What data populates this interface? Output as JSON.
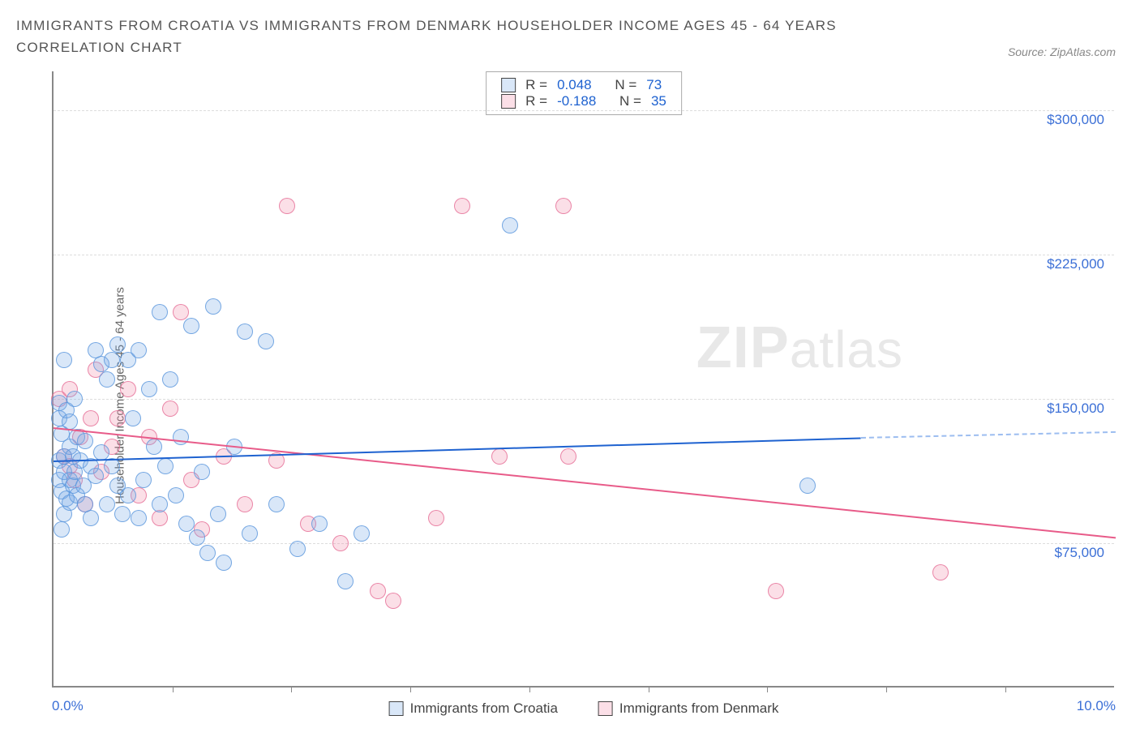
{
  "title": "IMMIGRANTS FROM CROATIA VS IMMIGRANTS FROM DENMARK HOUSEHOLDER INCOME AGES 45 - 64 YEARS CORRELATION CHART",
  "source": "Source: ZipAtlas.com",
  "watermark": {
    "part1": "ZIP",
    "part2": "atlas"
  },
  "chart": {
    "type": "scatter",
    "y_axis_label": "Householder Income Ages 45 - 64 years",
    "y_axis_label_fontsize": 15,
    "xlim": [
      0,
      10
    ],
    "ylim": [
      0,
      320000
    ],
    "x_min_label": "0.0%",
    "x_max_label": "10.0%",
    "x_tick_positions": [
      1.12,
      2.24,
      3.36,
      4.48,
      5.6,
      6.72,
      7.84,
      8.96
    ],
    "y_ticks": [
      {
        "value": 75000,
        "label": "$75,000"
      },
      {
        "value": 150000,
        "label": "$150,000"
      },
      {
        "value": 225000,
        "label": "$225,000"
      },
      {
        "value": 300000,
        "label": "$300,000"
      }
    ],
    "grid_color": "#dddddd",
    "background_color": "#ffffff",
    "axis_color": "#888888",
    "label_color": "#3b6fd6",
    "point_radius": 10,
    "legend": {
      "a": "Immigrants from Croatia",
      "b": "Immigrants from Denmark"
    },
    "stats": {
      "a": {
        "R": "0.048",
        "N": "73"
      },
      "b": {
        "R": "-0.188",
        "N": "35"
      },
      "r_label": "R =",
      "n_label": "N ="
    },
    "series_a": {
      "fill": "rgba(120,170,230,0.28)",
      "stroke": "rgba(90,150,220,0.8)",
      "line_color": "#1e62d0",
      "trend": {
        "x1": 0,
        "y1": 118000,
        "x2": 7.6,
        "y2": 130000,
        "x2_ext": 10,
        "y2_ext": 133000
      },
      "points": [
        [
          0.05,
          140000
        ],
        [
          0.05,
          148000
        ],
        [
          0.05,
          118000
        ],
        [
          0.05,
          108000
        ],
        [
          0.08,
          132000
        ],
        [
          0.08,
          102000
        ],
        [
          0.1,
          170000
        ],
        [
          0.1,
          120000
        ],
        [
          0.1,
          112000
        ],
        [
          0.1,
          90000
        ],
        [
          0.12,
          144000
        ],
        [
          0.12,
          98000
        ],
        [
          0.15,
          138000
        ],
        [
          0.15,
          125000
        ],
        [
          0.15,
          108000
        ],
        [
          0.15,
          96000
        ],
        [
          0.18,
          120000
        ],
        [
          0.18,
          105000
        ],
        [
          0.2,
          150000
        ],
        [
          0.2,
          112000
        ],
        [
          0.22,
          130000
        ],
        [
          0.22,
          100000
        ],
        [
          0.25,
          118000
        ],
        [
          0.28,
          105000
        ],
        [
          0.3,
          128000
        ],
        [
          0.3,
          95000
        ],
        [
          0.35,
          115000
        ],
        [
          0.35,
          88000
        ],
        [
          0.4,
          175000
        ],
        [
          0.4,
          110000
        ],
        [
          0.45,
          168000
        ],
        [
          0.45,
          122000
        ],
        [
          0.5,
          160000
        ],
        [
          0.5,
          95000
        ],
        [
          0.55,
          170000
        ],
        [
          0.55,
          115000
        ],
        [
          0.6,
          178000
        ],
        [
          0.6,
          105000
        ],
        [
          0.65,
          90000
        ],
        [
          0.7,
          170000
        ],
        [
          0.7,
          100000
        ],
        [
          0.75,
          140000
        ],
        [
          0.8,
          175000
        ],
        [
          0.8,
          88000
        ],
        [
          0.85,
          108000
        ],
        [
          0.9,
          155000
        ],
        [
          0.95,
          125000
        ],
        [
          1.0,
          195000
        ],
        [
          1.0,
          95000
        ],
        [
          1.05,
          115000
        ],
        [
          1.1,
          160000
        ],
        [
          1.15,
          100000
        ],
        [
          1.2,
          130000
        ],
        [
          1.25,
          85000
        ],
        [
          1.3,
          188000
        ],
        [
          1.35,
          78000
        ],
        [
          1.4,
          112000
        ],
        [
          1.45,
          70000
        ],
        [
          1.5,
          198000
        ],
        [
          1.55,
          90000
        ],
        [
          1.6,
          65000
        ],
        [
          1.7,
          125000
        ],
        [
          1.8,
          185000
        ],
        [
          1.85,
          80000
        ],
        [
          2.0,
          180000
        ],
        [
          2.1,
          95000
        ],
        [
          2.3,
          72000
        ],
        [
          2.5,
          85000
        ],
        [
          2.75,
          55000
        ],
        [
          2.9,
          80000
        ],
        [
          4.3,
          240000
        ],
        [
          7.1,
          105000
        ],
        [
          0.08,
          82000
        ]
      ]
    },
    "series_b": {
      "fill": "rgba(240,140,170,0.28)",
      "stroke": "rgba(230,110,150,0.8)",
      "line_color": "#e85b89",
      "trend": {
        "x1": 0,
        "y1": 135000,
        "x2": 10,
        "y2": 78000,
        "x2_ext": 10,
        "y2_ext": 78000
      },
      "points": [
        [
          0.05,
          150000
        ],
        [
          0.1,
          120000
        ],
        [
          0.15,
          155000
        ],
        [
          0.15,
          115000
        ],
        [
          0.2,
          108000
        ],
        [
          0.25,
          130000
        ],
        [
          0.3,
          95000
        ],
        [
          0.35,
          140000
        ],
        [
          0.4,
          165000
        ],
        [
          0.45,
          112000
        ],
        [
          0.55,
          125000
        ],
        [
          0.6,
          140000
        ],
        [
          0.7,
          155000
        ],
        [
          0.8,
          100000
        ],
        [
          0.9,
          130000
        ],
        [
          1.0,
          88000
        ],
        [
          1.1,
          145000
        ],
        [
          1.2,
          195000
        ],
        [
          1.3,
          108000
        ],
        [
          1.4,
          82000
        ],
        [
          1.6,
          120000
        ],
        [
          1.8,
          95000
        ],
        [
          2.1,
          118000
        ],
        [
          2.2,
          250000
        ],
        [
          2.4,
          85000
        ],
        [
          2.7,
          75000
        ],
        [
          3.05,
          50000
        ],
        [
          3.2,
          45000
        ],
        [
          3.6,
          88000
        ],
        [
          3.85,
          250000
        ],
        [
          4.2,
          120000
        ],
        [
          4.8,
          250000
        ],
        [
          4.85,
          120000
        ],
        [
          6.8,
          50000
        ],
        [
          8.35,
          60000
        ]
      ]
    }
  }
}
